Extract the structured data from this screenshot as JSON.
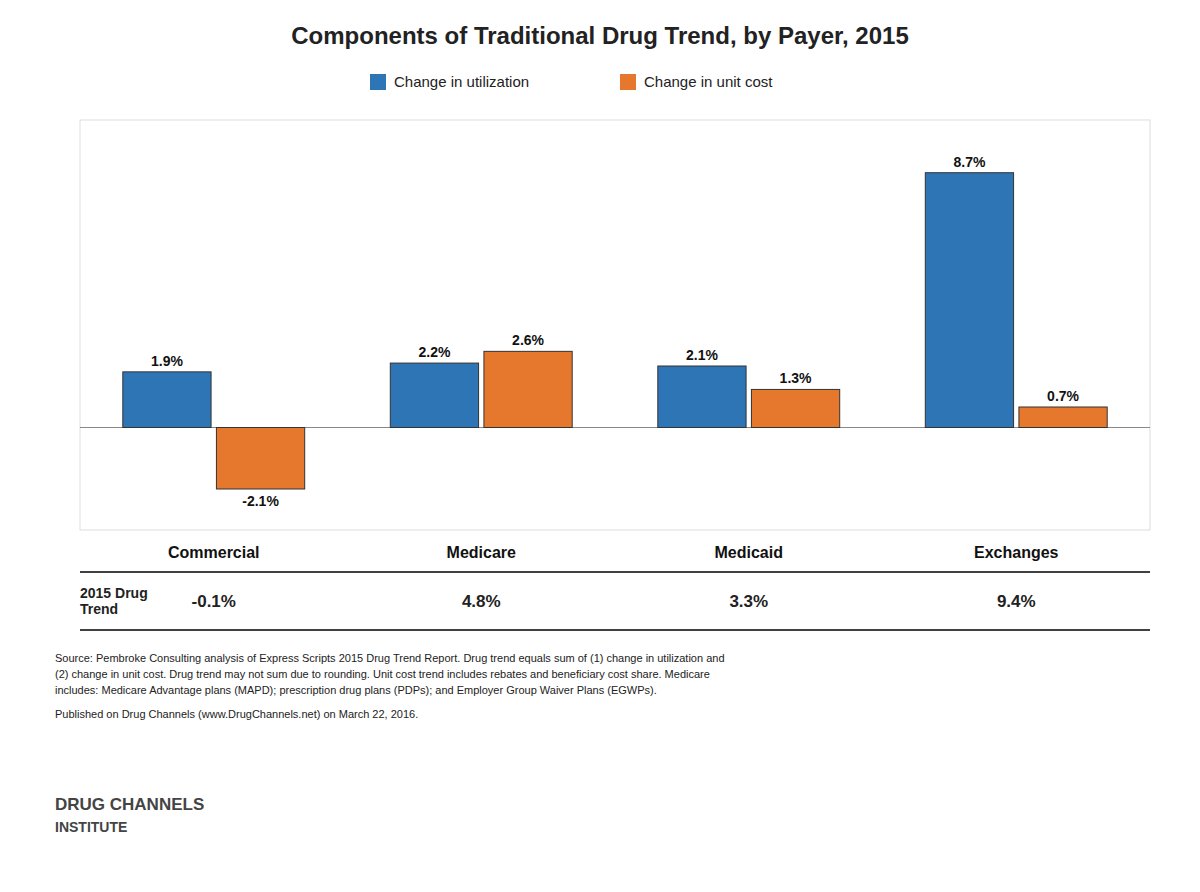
{
  "chart_data": {
    "type": "bar",
    "title": "Components of Traditional Drug Trend, by Payer, 2015",
    "categories": [
      "Commercial",
      "Medicare",
      "Medicaid",
      "Exchanges"
    ],
    "series": [
      {
        "name": "Change in utilization",
        "color": "#2E75B6",
        "values": [
          1.9,
          2.2,
          2.1,
          8.7
        ],
        "value_labels": [
          "1.9%",
          "2.2%",
          "2.1%",
          "8.7%"
        ]
      },
      {
        "name": "Change in unit cost",
        "color": "#E5782D",
        "values": [
          -2.1,
          2.6,
          1.3,
          0.7
        ],
        "value_labels": [
          "-2.1%",
          "2.6%",
          "1.3%",
          "0.7%"
        ]
      }
    ],
    "ylim": [
      -3.5,
      10.5
    ],
    "tick_labels": "x",
    "grid": false,
    "legend": "top",
    "data_labels": true,
    "table": {
      "row_label": "2015 Drug\nTrend",
      "values": [
        -0.1,
        4.8,
        3.3,
        9.4
      ],
      "value_labels": [
        "-0.1%",
        "4.8%",
        "3.3%",
        "9.4%"
      ]
    },
    "annotations": [
      "Source: Pembroke Consulting analysis of Express Scripts 2015 Drug Trend Report. Drug trend equals sum of (1) change in utilization and",
      "(2) change in unit cost. Drug trend may not sum due to rounding. Unit cost trend includes rebates and beneficiary cost share. Medicare",
      "includes: Medicare Advantage plans (MAPD); prescription drug plans (PDPs); and Employer Group Waiver Plans (EGWPs).",
      "Published on Drug Channels (www.DrugChannels.net) on March 22, 2016.",
      "DRUG CHANNELS",
      "INSTITUTE"
    ]
  }
}
